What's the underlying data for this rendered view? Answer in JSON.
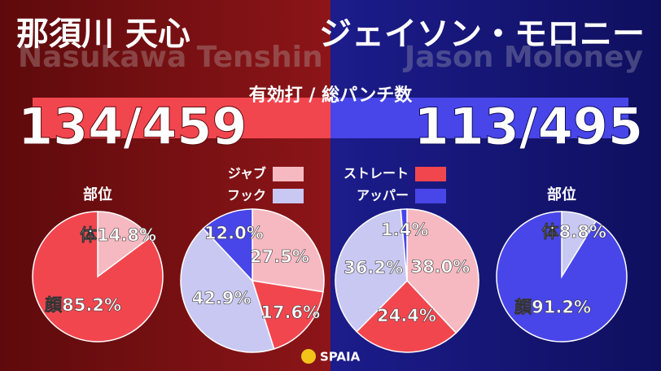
{
  "fighters": [
    {
      "name": "那須川 天心",
      "name_en": "Nasukawa Tenshin",
      "score": "134/459"
    },
    {
      "name": "ジェイソン・モロニー",
      "name_en": "Jason Moloney",
      "score": "113/495"
    }
  ],
  "stat_label": "有効打 / 総パンチ数",
  "brand": "SPAIA",
  "chart_data": [
    {
      "type": "pie",
      "title": "部位",
      "categories": [
        "体",
        "顔"
      ],
      "values": [
        14.8,
        85.2
      ],
      "value_labels": [
        "14.8%",
        "85.2%"
      ],
      "colors": [
        "#f7b9c1",
        "#f2464f"
      ],
      "show_category_labels": true
    },
    {
      "type": "pie",
      "categories": [
        "ジャブ",
        "ストレート",
        "フック",
        "アッパー"
      ],
      "values": [
        27.5,
        17.6,
        42.9,
        12
      ],
      "value_labels": [
        "27.5%",
        "17.6%",
        "42.9%",
        "12.0%"
      ],
      "colors": [
        "#f7b9c1",
        "#f2464f",
        "#c9c8f2",
        "#4846e8"
      ],
      "legend": true
    },
    {
      "type": "pie",
      "categories": [
        "ジャブ",
        "ストレート",
        "フック",
        "アッパー"
      ],
      "values": [
        38,
        24.4,
        36.2,
        1.4
      ],
      "value_labels": [
        "38.0%",
        "24.4%",
        "36.2%",
        "1.4%"
      ],
      "colors": [
        "#f7b9c1",
        "#f2464f",
        "#c9c8f2",
        "#4846e8"
      ]
    },
    {
      "type": "pie",
      "title": "部位",
      "categories": [
        "体",
        "顔"
      ],
      "values": [
        8.8,
        91.2
      ],
      "value_labels": [
        "8.8%",
        "91.2%"
      ],
      "colors": [
        "#c9c8f2",
        "#4846e8"
      ],
      "show_category_labels": true
    }
  ]
}
